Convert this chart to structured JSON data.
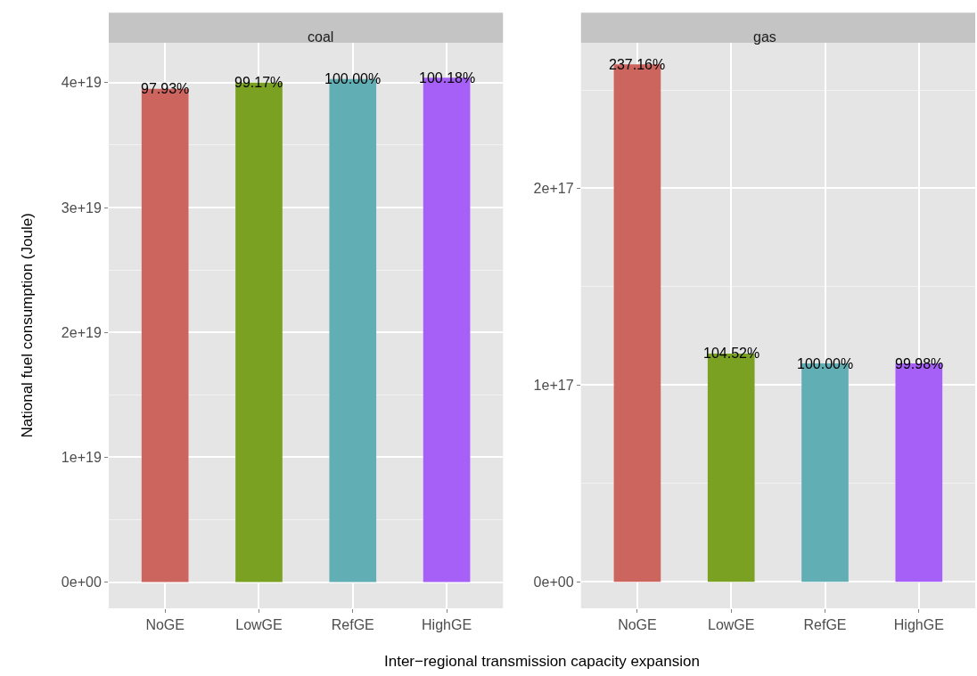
{
  "chart_data": [
    {
      "type": "bar",
      "title": "coal",
      "ylabel": "National fuel consumption (Joule)",
      "xlabel": "Inter−regional transmission capacity expansion",
      "categories": [
        "NoGE",
        "LowGE",
        "RefGE",
        "HighGE"
      ],
      "values": [
        3.95e+19,
        4e+19,
        4.03e+19,
        4.04e+19
      ],
      "colors": [
        "#cd655f",
        "#7aa122",
        "#62aeb5",
        "#a65ff7"
      ],
      "annotations": [
        {
          "text": "97.93%",
          "x": "NoGE",
          "y": 3.95e+19
        },
        {
          "text": "99.17%",
          "x": "LowGE",
          "y": 4e+19
        },
        {
          "text": "100.00%",
          "x": "RefGE",
          "y": 4.03e+19
        },
        {
          "text": "100.18%",
          "x": "HighGE",
          "y": 4.04e+19
        }
      ],
      "ylim": [
        -2.1e+18,
        4.32e+19
      ],
      "yticks": [
        {
          "value": 0,
          "label": "0e+00"
        },
        {
          "value": 1e+19,
          "label": "1e+19"
        },
        {
          "value": 2e+19,
          "label": "2e+19"
        },
        {
          "value": 3e+19,
          "label": "3e+19"
        },
        {
          "value": 4e+19,
          "label": "4e+19"
        }
      ],
      "grid": true
    },
    {
      "type": "bar",
      "title": "gas",
      "categories": [
        "NoGE",
        "LowGE",
        "RefGE",
        "HighGE"
      ],
      "values": [
        2.63e+17,
        1.16e+17,
        1.11e+17,
        1.11e+17
      ],
      "colors": [
        "#cd655f",
        "#7aa122",
        "#62aeb5",
        "#a65ff7"
      ],
      "annotations": [
        {
          "text": "237.16%",
          "x": "NoGE",
          "y": 2.63e+17
        },
        {
          "text": "104.52%",
          "x": "LowGE",
          "y": 1.16e+17
        },
        {
          "text": "100.00%",
          "x": "RefGE",
          "y": 1.11e+17
        },
        {
          "text": "99.98%",
          "x": "HighGE",
          "y": 1.11e+17
        }
      ],
      "ylim": [
        -1.35e+16,
        2.74e+17
      ],
      "yticks": [
        {
          "value": 0,
          "label": "0e+00"
        },
        {
          "value": 1e+17,
          "label": "1e+17"
        },
        {
          "value": 2e+17,
          "label": "2e+17"
        }
      ],
      "grid": true
    }
  ]
}
